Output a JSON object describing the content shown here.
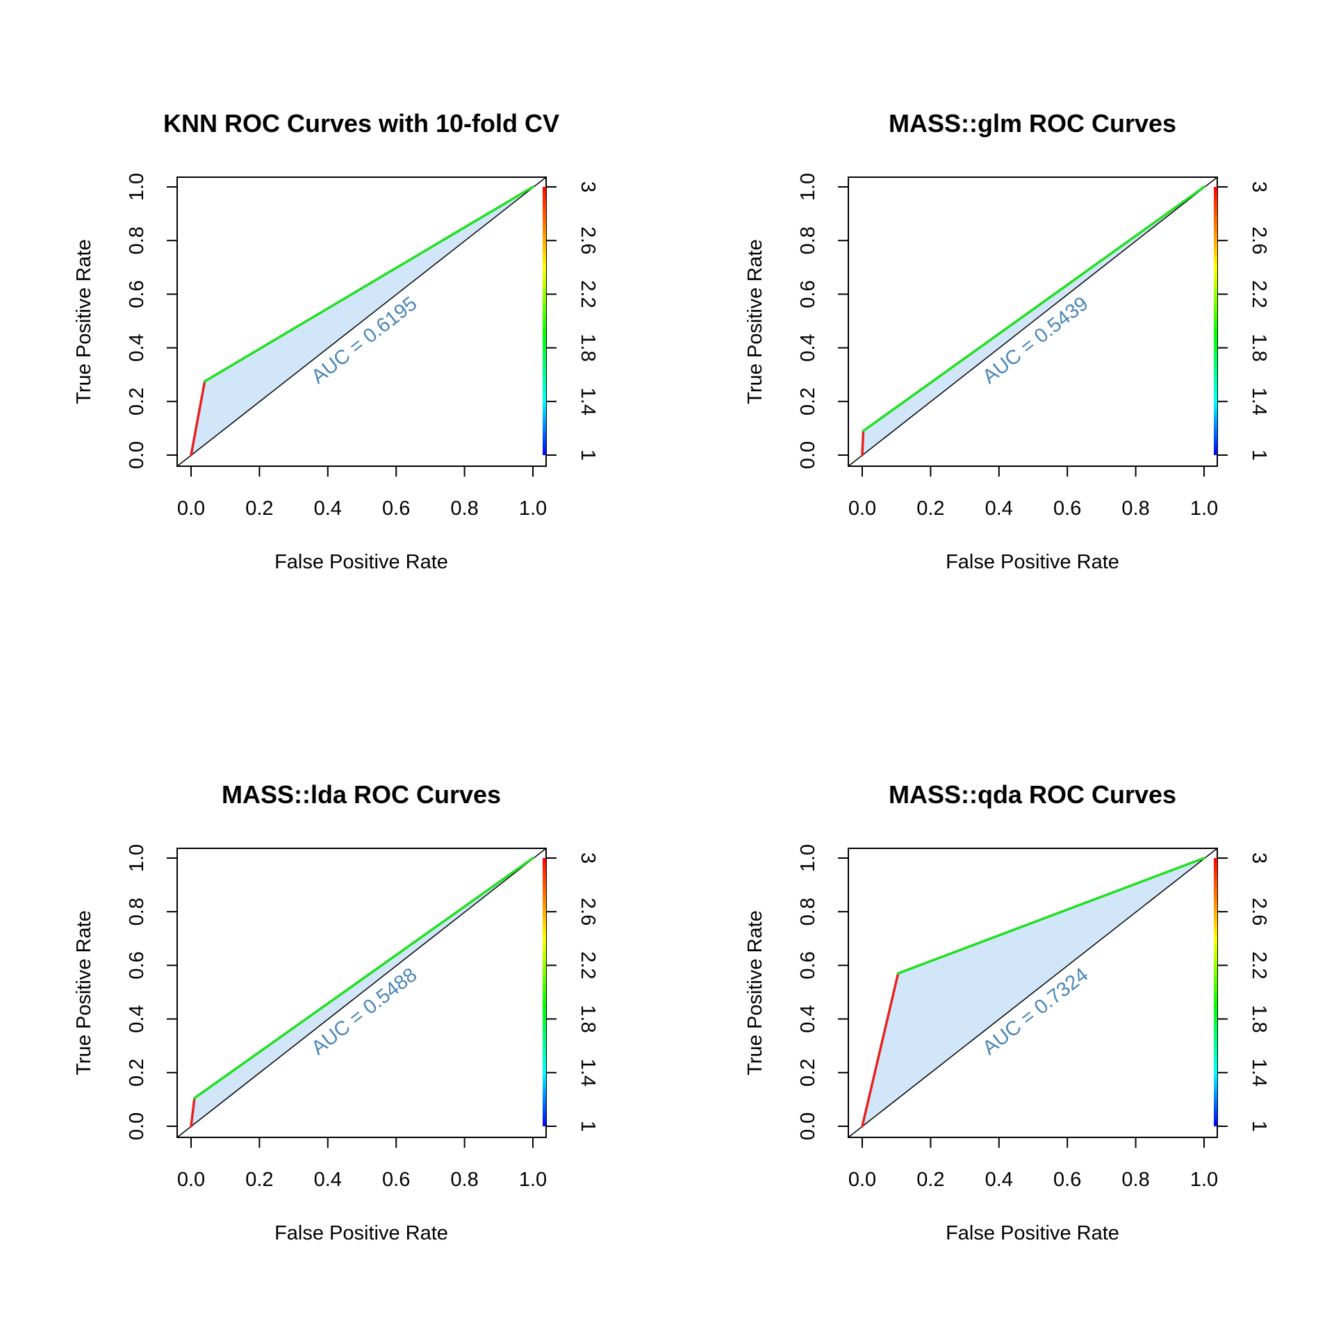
{
  "chart_data": [
    {
      "type": "line",
      "title": "KNN ROC Curves with 10-fold CV",
      "xlabel": "False Positive Rate",
      "ylabel": "True Positive Rate",
      "xlim": [
        0,
        1
      ],
      "ylim": [
        0,
        1
      ],
      "x_ticks": [
        "0.0",
        "0.2",
        "0.4",
        "0.6",
        "0.8",
        "1.0"
      ],
      "y_ticks": [
        "0.0",
        "0.2",
        "0.4",
        "0.6",
        "0.8",
        "1.0"
      ],
      "colorbar_ticks": [
        "1",
        "1.4",
        "1.8",
        "2.2",
        "2.6",
        "3"
      ],
      "colorbar_range": [
        1,
        3
      ],
      "grid": false,
      "series": [
        {
          "x": [
            0,
            0.04,
            1
          ],
          "y": [
            0,
            0.275,
            1
          ],
          "segment_colors": [
            "#e8211f",
            "#1fe01f"
          ]
        }
      ],
      "auc_label": "AUC = 0.6195",
      "auc_color": "#4a86b8",
      "fill_color": "#d1e6f8"
    },
    {
      "type": "line",
      "title": "MASS::glm ROC Curves",
      "xlabel": "False Positive Rate",
      "ylabel": "True Positive Rate",
      "xlim": [
        0,
        1
      ],
      "ylim": [
        0,
        1
      ],
      "x_ticks": [
        "0.0",
        "0.2",
        "0.4",
        "0.6",
        "0.8",
        "1.0"
      ],
      "y_ticks": [
        "0.0",
        "0.2",
        "0.4",
        "0.6",
        "0.8",
        "1.0"
      ],
      "colorbar_ticks": [
        "1",
        "1.4",
        "1.8",
        "2.2",
        "2.6",
        "3"
      ],
      "colorbar_range": [
        1,
        3
      ],
      "grid": false,
      "series": [
        {
          "x": [
            0,
            0.003,
            1
          ],
          "y": [
            0,
            0.09,
            1
          ],
          "segment_colors": [
            "#e8211f",
            "#1fe01f"
          ]
        }
      ],
      "auc_label": "AUC = 0.5439",
      "auc_color": "#4a86b8",
      "fill_color": "#d1e6f8"
    },
    {
      "type": "line",
      "title": "MASS::lda ROC Curves",
      "xlabel": "False Positive Rate",
      "ylabel": "True Positive Rate",
      "xlim": [
        0,
        1
      ],
      "ylim": [
        0,
        1
      ],
      "x_ticks": [
        "0.0",
        "0.2",
        "0.4",
        "0.6",
        "0.8",
        "1.0"
      ],
      "y_ticks": [
        "0.0",
        "0.2",
        "0.4",
        "0.6",
        "0.8",
        "1.0"
      ],
      "colorbar_ticks": [
        "1",
        "1.4",
        "1.8",
        "2.2",
        "2.6",
        "3"
      ],
      "colorbar_range": [
        1,
        3
      ],
      "grid": false,
      "series": [
        {
          "x": [
            0,
            0.01,
            1
          ],
          "y": [
            0,
            0.105,
            1
          ],
          "segment_colors": [
            "#e8211f",
            "#1fe01f"
          ]
        }
      ],
      "auc_label": "AUC = 0.5488",
      "auc_color": "#4a86b8",
      "fill_color": "#d1e6f8"
    },
    {
      "type": "line",
      "title": "MASS::qda ROC Curves",
      "xlabel": "False Positive Rate",
      "ylabel": "True Positive Rate",
      "xlim": [
        0,
        1
      ],
      "ylim": [
        0,
        1
      ],
      "x_ticks": [
        "0.0",
        "0.2",
        "0.4",
        "0.6",
        "0.8",
        "1.0"
      ],
      "y_ticks": [
        "0.0",
        "0.2",
        "0.4",
        "0.6",
        "0.8",
        "1.0"
      ],
      "colorbar_ticks": [
        "1",
        "1.4",
        "1.8",
        "2.2",
        "2.6",
        "3"
      ],
      "colorbar_range": [
        1,
        3
      ],
      "grid": false,
      "series": [
        {
          "x": [
            0,
            0.105,
            1
          ],
          "y": [
            0,
            0.57,
            1
          ],
          "segment_colors": [
            "#e8211f",
            "#1fe01f"
          ]
        }
      ],
      "auc_label": "AUC = 0.7324",
      "auc_color": "#4a86b8",
      "fill_color": "#d1e6f8"
    }
  ]
}
